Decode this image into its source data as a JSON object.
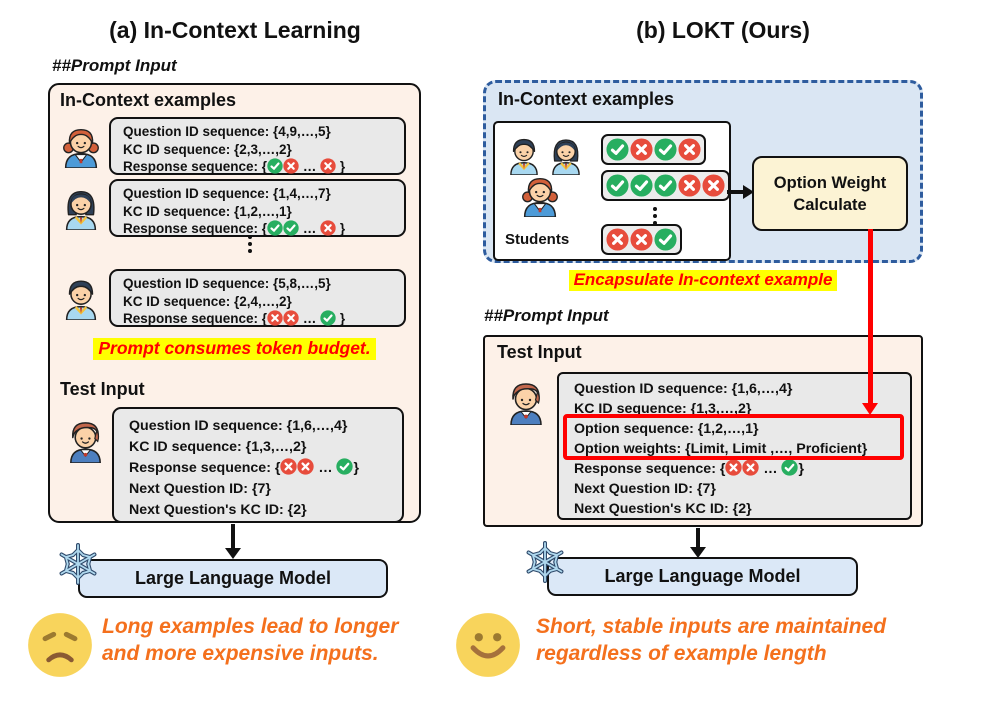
{
  "colors": {
    "check_green": "#27AE60",
    "cross_red": "#E74C3C",
    "highlight_bg": "#FFFF00",
    "highlight_text": "#FF0000",
    "caption_orange": "#F4701D",
    "arrow_red": "#FF0000",
    "panel_blue": "#DAE6F3",
    "cream": "#FDF1E8",
    "llm_blue": "#DBE8F7",
    "option_weight_yellow": "#FCF3D4"
  },
  "panel_a": {
    "title": "(a) In-Context Learning",
    "prompt_input_label": "##Prompt Input",
    "examples_heading": "In-Context examples",
    "examples": [
      {
        "avatar": "girl-orange-hair",
        "lines": [
          "Question ID sequence: {4,9,…,5}",
          "KC ID sequence: {2,3,…,2}"
        ],
        "response_line": [
          "Response sequence: {",
          "@check",
          "@cross",
          " … ",
          "@cross",
          " }"
        ]
      },
      {
        "avatar": "girl-dark-hair",
        "lines": [
          "Question ID sequence: {1,4,…,7}",
          "KC ID sequence: {1,2,…,1}"
        ],
        "response_line": [
          "Response sequence: {",
          "@check",
          "@check",
          " … ",
          "@cross",
          " }"
        ]
      },
      {
        "avatar": "boy-dark-hair",
        "lines": [
          "Question ID sequence: {5,8,…,5}",
          "KC ID sequence: {2,4,…,2}"
        ],
        "response_line": [
          "Response sequence: {",
          "@cross",
          "@cross",
          " … ",
          "@check",
          " }"
        ]
      }
    ],
    "token_budget_note": "Prompt consumes token budget.",
    "test_heading": "Test Input",
    "test_avatar": "boy-brown-hair",
    "test_lines": [
      [
        "Question ID sequence: {1,6,…,4}"
      ],
      [
        "KC ID sequence: {1,3,…,2}"
      ],
      [
        "Response sequence: {",
        "@cross",
        "@cross",
        " … ",
        "@check",
        "}"
      ],
      [
        "Next Question ID: {7}"
      ],
      [
        "Next Question's KC ID: {2}"
      ]
    ],
    "llm_label": "Large Language Model",
    "caption": {
      "emoji": "sad-face",
      "lines": [
        "Long examples lead to longer",
        "and more expensive inputs."
      ]
    }
  },
  "panel_b": {
    "title": "(b) LOKT (Ours)",
    "examples_heading": "In-Context examples",
    "students_label": "Students",
    "students_avatars": [
      "boy-dark-hair",
      "girl-dark-hair",
      "girl-orange-hair"
    ],
    "sequence_rows": [
      [
        "check",
        "cross",
        "check",
        "cross"
      ],
      [
        "check",
        "check",
        "check",
        "cross",
        "cross"
      ],
      [
        "cross",
        "cross",
        "check"
      ]
    ],
    "owc_box": {
      "line1": "Option Weight",
      "line2": "Calculate"
    },
    "encapsulate_note": "Encapsulate In-context example",
    "prompt_input_label": "##Prompt Input",
    "test_heading": "Test Input",
    "test_avatar": "boy-brown-hair",
    "test_lines": [
      {
        "tokens": [
          "Question ID sequence: {1,6,…,4}"
        ],
        "highlighted": false
      },
      {
        "tokens": [
          "KC ID sequence: {1,3,…,2}"
        ],
        "highlighted": false
      },
      {
        "tokens": [
          "Option sequence: {1,2,…,1}"
        ],
        "highlighted": true
      },
      {
        "tokens": [
          "Option weights: {Limit, Limit ,…, Proficient}"
        ],
        "highlighted": true
      },
      {
        "tokens": [
          "Response sequence: {",
          "@cross",
          "@cross",
          " … ",
          "@check",
          "}"
        ],
        "highlighted": false
      },
      {
        "tokens": [
          "Next Question ID: {7}"
        ],
        "highlighted": false
      },
      {
        "tokens": [
          "Next Question's KC ID: {2}"
        ],
        "highlighted": false
      }
    ],
    "llm_label": "Large Language Model",
    "caption": {
      "emoji": "smiley-face",
      "lines": [
        "Short, stable inputs are maintained",
        "regardless of example length"
      ]
    }
  }
}
